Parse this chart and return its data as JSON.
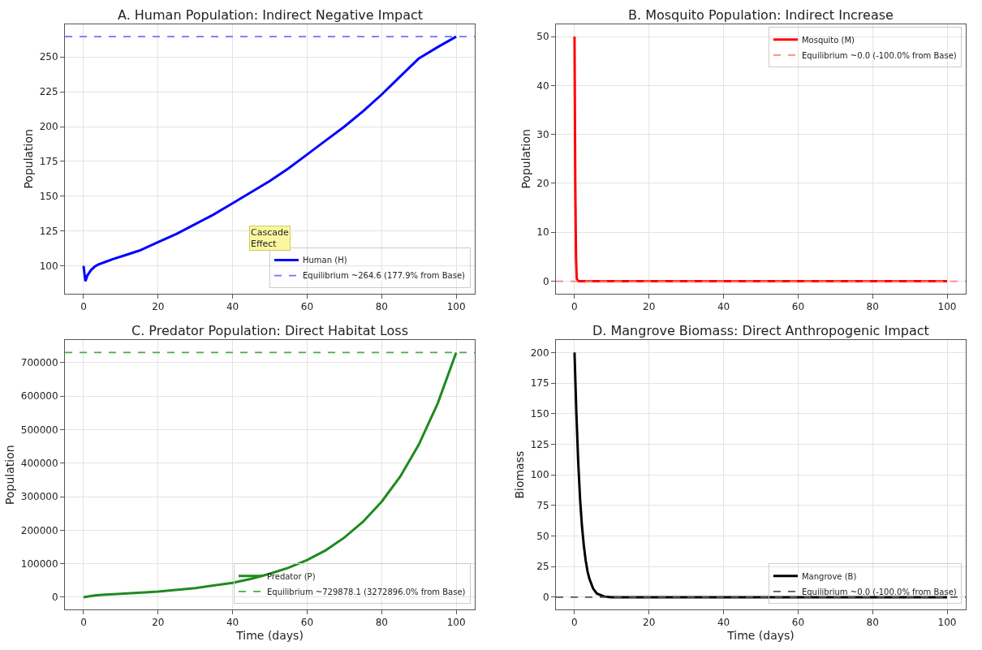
{
  "chart_data": [
    {
      "type": "line",
      "title": "A. Human Population: Indirect Negative Impact",
      "ylabel": "Population",
      "x": [
        0,
        0.5,
        1,
        2,
        3,
        4,
        6,
        8,
        11,
        15,
        20,
        25,
        30,
        35,
        40,
        45,
        50,
        55,
        60,
        65,
        70,
        75,
        80,
        85,
        90,
        95,
        100
      ],
      "xlim": [
        -5,
        105
      ],
      "xticks": [
        0,
        20,
        40,
        60,
        80,
        100
      ],
      "ylim": [
        80.2,
        273.4
      ],
      "yticks": [
        100,
        125,
        150,
        175,
        200,
        225,
        250
      ],
      "grid": true,
      "legend": "bottom right",
      "marker": "none",
      "line_style": "solid",
      "series": [
        {
          "name": "Human (H)",
          "color": "#0000ff",
          "values": [
            100,
            89,
            93,
            97,
            99.5,
            101,
            103,
            105,
            107.5,
            111,
            117,
            123,
            130,
            137,
            145,
            153,
            161,
            170,
            180,
            190,
            200,
            211,
            223,
            236,
            249,
            257,
            264.6
          ]
        }
      ],
      "ref_lines": [
        {
          "axis": "y",
          "value": 264.6,
          "label": "Equilibrium ~264.6 (177.9% from Base)",
          "color": "#7070ff",
          "line_style": "dashed"
        }
      ],
      "annotations": [
        "Cascade\nEffect"
      ]
    },
    {
      "type": "line",
      "title": "B. Mosquito Population: Indirect Increase",
      "ylabel": "Population",
      "x": [
        0,
        0.2,
        0.4,
        0.6,
        1,
        100
      ],
      "xlim": [
        -5,
        105
      ],
      "xticks": [
        0,
        20,
        40,
        60,
        80,
        100
      ],
      "ylim": [
        -2.5,
        52.5
      ],
      "yticks": [
        0,
        10,
        20,
        30,
        40,
        50
      ],
      "grid": true,
      "legend": "top right",
      "marker": "none",
      "line_style": "solid",
      "series": [
        {
          "name": "Mosquito (M)",
          "color": "#ff0000",
          "values": [
            50,
            20,
            5,
            0.5,
            0,
            0
          ]
        }
      ],
      "ref_lines": [
        {
          "axis": "y",
          "value": 0,
          "label": "Equilibrium ~0.0 (-100.0% from Base)",
          "color": "#ff8080",
          "line_style": "dashed"
        }
      ]
    },
    {
      "type": "line",
      "title": "C. Predator Population: Direct Habitat Loss",
      "ylabel": "Population",
      "xlabel": "Time (days)",
      "x": [
        0,
        3,
        5,
        10,
        20,
        30,
        40,
        45,
        50,
        55,
        60,
        65,
        70,
        75,
        80,
        85,
        90,
        95,
        100
      ],
      "xlim": [
        -5,
        105
      ],
      "xticks": [
        0,
        20,
        40,
        60,
        80,
        100
      ],
      "ylim": [
        -36494,
        766372
      ],
      "yticks": [
        0,
        100000,
        200000,
        300000,
        400000,
        500000,
        600000,
        700000
      ],
      "grid": true,
      "legend": "bottom right",
      "marker": "none",
      "line_style": "solid",
      "series": [
        {
          "name": "Predator (P)",
          "color": "#1f8a1f",
          "values": [
            0,
            5000,
            7000,
            10000,
            17000,
            27000,
            43000,
            55000,
            70000,
            88000,
            111000,
            140000,
            178000,
            225000,
            285000,
            360000,
            456000,
            577000,
            729878.1
          ]
        }
      ],
      "ref_lines": [
        {
          "axis": "y",
          "value": 729878.1,
          "label": "Equilibrium ~729878.1 (3272896.0% from Base)",
          "color": "#40b040",
          "line_style": "dashed"
        }
      ]
    },
    {
      "type": "line",
      "title": "D. Mangrove Biomass: Direct Anthropogenic Impact",
      "ylabel": "Biomass",
      "xlabel": "Time (days)",
      "x": [
        0,
        0.5,
        1,
        1.5,
        2,
        2.5,
        3,
        3.5,
        4,
        5,
        6,
        8,
        10,
        100
      ],
      "xlim": [
        -5,
        105
      ],
      "xticks": [
        0,
        20,
        40,
        60,
        80,
        100
      ],
      "ylim": [
        -10,
        210
      ],
      "yticks": [
        0,
        25,
        50,
        75,
        100,
        125,
        150,
        175,
        200
      ],
      "grid": true,
      "legend": "bottom right",
      "marker": "none",
      "line_style": "solid",
      "series": [
        {
          "name": "Mangrove (B)",
          "color": "#000000",
          "values": [
            200,
            150,
            110,
            80,
            58,
            42,
            30,
            21,
            15,
            7,
            3,
            0.5,
            0,
            0
          ]
        }
      ],
      "ref_lines": [
        {
          "axis": "y",
          "value": 0,
          "label": "Equilibrium ~0.0 (-100.0% from Base)",
          "color": "#555555",
          "line_style": "dashed"
        }
      ]
    }
  ]
}
